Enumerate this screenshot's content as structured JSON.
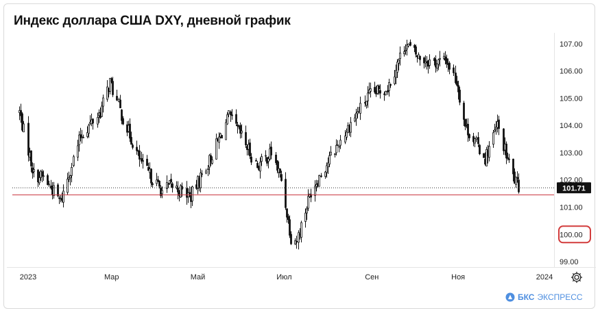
{
  "title": "Индекс доллара США DXY, дневной график",
  "brand": {
    "name": "БКС",
    "suffix": "ЭКСПРЕСС"
  },
  "chart_data": {
    "type": "candlestick",
    "title": "Индекс доллара США DXY, дневной график",
    "x_ticks": [
      {
        "label": "2023",
        "date": "2023-01-01"
      },
      {
        "label": "Мар",
        "date": "2023-03-01"
      },
      {
        "label": "Май",
        "date": "2023-05-01"
      },
      {
        "label": "Июл",
        "date": "2023-07-01"
      },
      {
        "label": "Сен",
        "date": "2023-09-01"
      },
      {
        "label": "Ноя",
        "date": "2023-11-01"
      },
      {
        "label": "2024",
        "date": "2024-01-01"
      }
    ],
    "y_ticks": [
      "107.00",
      "106.00",
      "105.00",
      "104.00",
      "103.00",
      "102.00",
      "101.00",
      "100.00",
      "99.00"
    ],
    "ylim": [
      98.8,
      107.4
    ],
    "last_price_label": "101.71",
    "highlighted_level_label": "100.00",
    "support_line_value": 101.45,
    "up_color": "#ffffff",
    "down_color": "#111111",
    "support_line_color": "#c8323c",
    "highlight_color": "#d23c3c",
    "series": [
      {
        "date": "2023-01-03",
        "close": 104.5
      },
      {
        "date": "2023-01-13",
        "close": 102.2
      },
      {
        "date": "2023-01-20",
        "close": 102.1
      },
      {
        "date": "2023-02-01",
        "close": 101.2
      },
      {
        "date": "2023-02-15",
        "close": 103.6
      },
      {
        "date": "2023-03-01",
        "close": 104.5
      },
      {
        "date": "2023-03-08",
        "close": 105.6
      },
      {
        "date": "2023-03-16",
        "close": 104.4
      },
      {
        "date": "2023-03-31",
        "close": 102.5
      },
      {
        "date": "2023-04-14",
        "close": 101.6
      },
      {
        "date": "2023-04-20",
        "close": 101.8
      },
      {
        "date": "2023-05-04",
        "close": 101.4
      },
      {
        "date": "2023-05-16",
        "close": 102.6
      },
      {
        "date": "2023-05-31",
        "close": 104.3
      },
      {
        "date": "2023-06-09",
        "close": 103.6
      },
      {
        "date": "2023-06-20",
        "close": 102.5
      },
      {
        "date": "2023-06-30",
        "close": 103.0
      },
      {
        "date": "2023-07-07",
        "close": 102.0
      },
      {
        "date": "2023-07-14",
        "close": 99.9
      },
      {
        "date": "2023-07-18",
        "close": 99.8
      },
      {
        "date": "2023-07-28",
        "close": 101.6
      },
      {
        "date": "2023-08-15",
        "close": 103.2
      },
      {
        "date": "2023-08-25",
        "close": 104.1
      },
      {
        "date": "2023-09-07",
        "close": 105.1
      },
      {
        "date": "2023-09-20",
        "close": 105.4
      },
      {
        "date": "2023-10-03",
        "close": 107.0
      },
      {
        "date": "2023-10-12",
        "close": 106.5
      },
      {
        "date": "2023-10-24",
        "close": 106.3
      },
      {
        "date": "2023-11-01",
        "close": 106.4
      },
      {
        "date": "2023-11-08",
        "close": 105.6
      },
      {
        "date": "2023-11-14",
        "close": 104.0
      },
      {
        "date": "2023-11-28",
        "close": 102.8
      },
      {
        "date": "2023-12-07",
        "close": 104.0
      },
      {
        "date": "2023-12-13",
        "close": 102.9
      },
      {
        "date": "2023-12-19",
        "close": 102.0
      },
      {
        "date": "2023-12-22",
        "close": 101.7
      }
    ]
  }
}
